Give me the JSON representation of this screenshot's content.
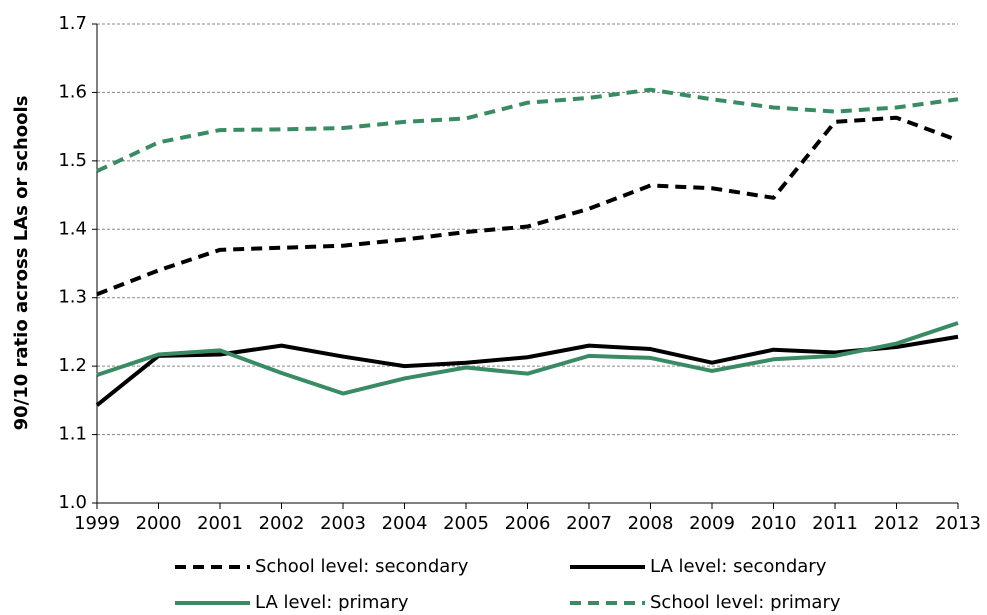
{
  "chart_data": {
    "type": "line",
    "y_axis_label": "90/10 ratio across LAs or schools",
    "categories": [
      "1999",
      "2000",
      "2001",
      "2002",
      "2003",
      "2004",
      "2005",
      "2006",
      "2007",
      "2008",
      "2009",
      "2010",
      "2011",
      "2012",
      "2013"
    ],
    "series": [
      {
        "name": "School level: secondary",
        "color": "#000000",
        "dashed": true,
        "values": [
          1.305,
          1.34,
          1.37,
          1.373,
          1.376,
          1.385,
          1.396,
          1.404,
          1.43,
          1.464,
          1.46,
          1.446,
          1.557,
          1.563,
          1.53
        ]
      },
      {
        "name": "LA level: secondary",
        "color": "#000000",
        "dashed": false,
        "values": [
          1.143,
          1.215,
          1.217,
          1.23,
          1.214,
          1.2,
          1.205,
          1.213,
          1.23,
          1.225,
          1.205,
          1.224,
          1.22,
          1.228,
          1.243
        ]
      },
      {
        "name": "LA level: primary",
        "color": "#3a8a64",
        "dashed": false,
        "values": [
          1.187,
          1.217,
          1.223,
          1.19,
          1.16,
          1.182,
          1.198,
          1.189,
          1.215,
          1.212,
          1.193,
          1.21,
          1.215,
          1.233,
          1.263
        ]
      },
      {
        "name": "School level: primary",
        "color": "#3a8a64",
        "dashed": true,
        "values": [
          1.485,
          1.527,
          1.545,
          1.546,
          1.548,
          1.557,
          1.562,
          1.585,
          1.592,
          1.604,
          1.59,
          1.578,
          1.572,
          1.578,
          1.59
        ]
      }
    ],
    "ylim": [
      1.0,
      1.7
    ],
    "yticks": [
      {
        "value": 1.0,
        "label": "1.0"
      },
      1.1,
      1.2,
      1.3,
      1.4,
      1.5,
      1.6,
      1.7
    ],
    "grid": true
  }
}
